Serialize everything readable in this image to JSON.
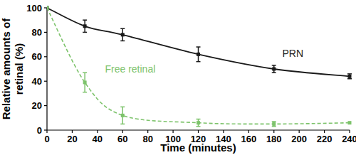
{
  "chart_data": {
    "type": "line",
    "x_label": "Time (minutes)",
    "y_label": "Relative amounts of retinal (%)",
    "x": [
      0,
      30,
      60,
      120,
      180,
      240
    ],
    "series": [
      {
        "name": "PRN",
        "color": "#1a1a1a",
        "marker": "square",
        "line_style": "solid",
        "values": [
          100,
          85,
          78,
          62,
          50,
          44
        ],
        "errors": [
          0,
          5,
          5,
          6,
          3,
          2
        ]
      },
      {
        "name": "Free retinal",
        "color": "#7dc36b",
        "marker": "square",
        "line_style": "dashed",
        "values": [
          100,
          39,
          12,
          6,
          5,
          6
        ],
        "errors": [
          0,
          8,
          7,
          3,
          2,
          0
        ]
      }
    ],
    "xlim": [
      0,
      240
    ],
    "xticks": [
      0,
      20,
      40,
      60,
      80,
      100,
      120,
      140,
      160,
      180,
      200,
      220,
      240
    ],
    "ylim": [
      0,
      100
    ],
    "yticks": [
      0,
      20,
      40,
      60,
      80,
      100
    ],
    "grid": false
  }
}
